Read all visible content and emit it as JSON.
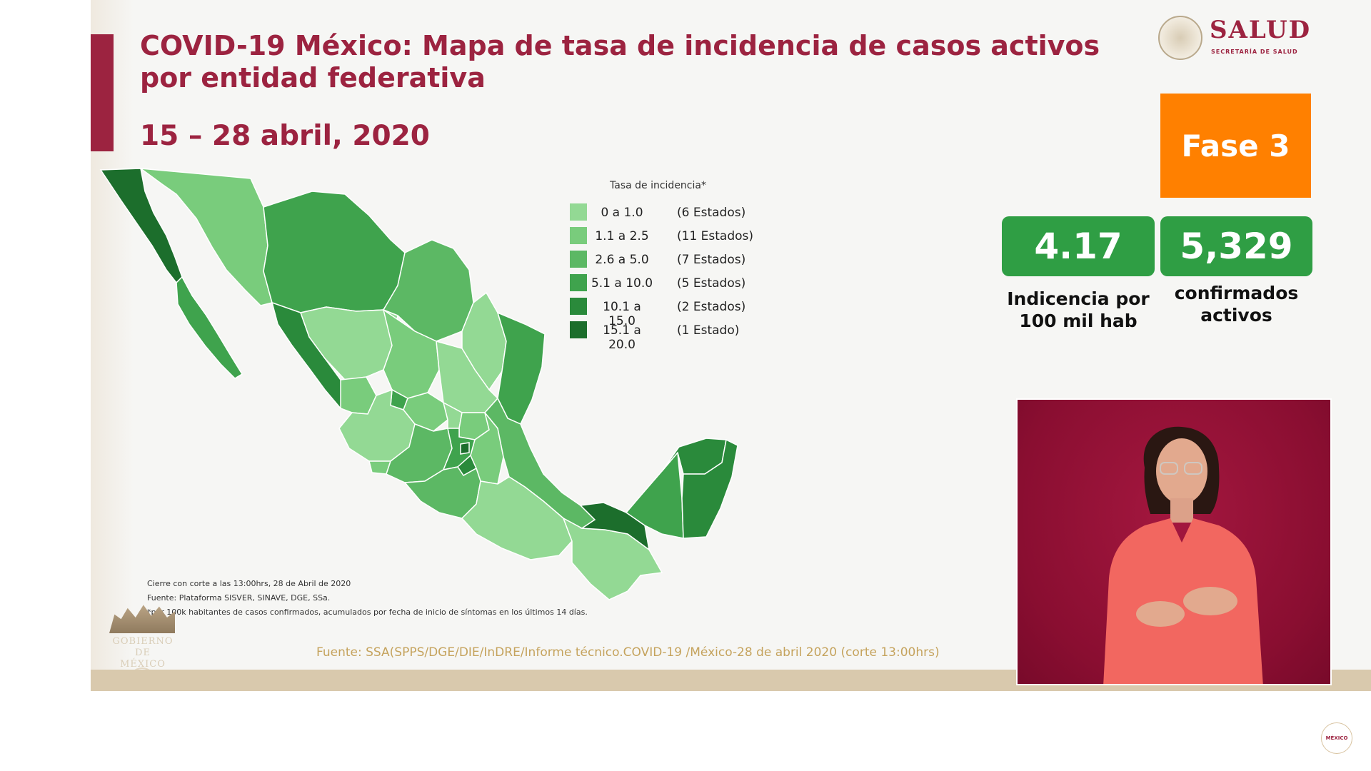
{
  "title": "COVID-19 México: Mapa de tasa de incidencia de casos activos por entidad federativa",
  "date_range": "15 – 28 abril, 2020",
  "logo": {
    "name": "SALUD",
    "subtitle": "SECRETARÍA DE SALUD",
    "icon": "national-seal-icon"
  },
  "phase": {
    "label": "Fase 3",
    "color": "#ff8000"
  },
  "stats": [
    {
      "value": "4.17",
      "label_line1": "Indicencia por",
      "label_line2": "100 mil hab"
    },
    {
      "value": "5,329",
      "label_line1": "confirmados",
      "label_line2": "activos"
    }
  ],
  "legend": {
    "title": "Tasa de incidencia*",
    "items": [
      {
        "range": "0 a 1.0",
        "count": "(6 Estados)",
        "color": "#93d994"
      },
      {
        "range": "1.1 a 2.5",
        "count": "(11 Estados)",
        "color": "#79cc7c"
      },
      {
        "range": "2.6 a 5.0",
        "count": "(7 Estados)",
        "color": "#5cb864"
      },
      {
        "range": "5.1 a 10.0",
        "count": "(5 Estados)",
        "color": "#3fa34d"
      },
      {
        "range": "10.1 a 15.0",
        "count": "(2 Estados)",
        "color": "#2a8a3b"
      },
      {
        "range": "15.1 a 20.0",
        "count": "(1 Estado)",
        "color": "#1c6e2c"
      }
    ]
  },
  "notes": [
    "Cierre con corte a las 13:00hrs, 28 de Abril de 2020",
    "Fuente: Plataforma SISVER, SINAVE, DGE, SSa.",
    "*por 100k habitantes de casos confirmados, acumulados por fecha de inicio de síntomas en los últimos 14 días."
  ],
  "source": "Fuente: SSA(SPPS/DGE/DIE/InDRE/Informe técnico.COVID-19 /México-28 de abril 2020 (corte 13:00hrs)",
  "gobierno_logo": {
    "line1": "GOBIERNO DE",
    "line2": "MÉXICO"
  },
  "corner_logo": "MÉXICO",
  "colors": {
    "brand": "#9c2340",
    "stat_green": "#2f9e44",
    "phase_orange": "#ff8000",
    "source_gold": "#c5a35d"
  }
}
